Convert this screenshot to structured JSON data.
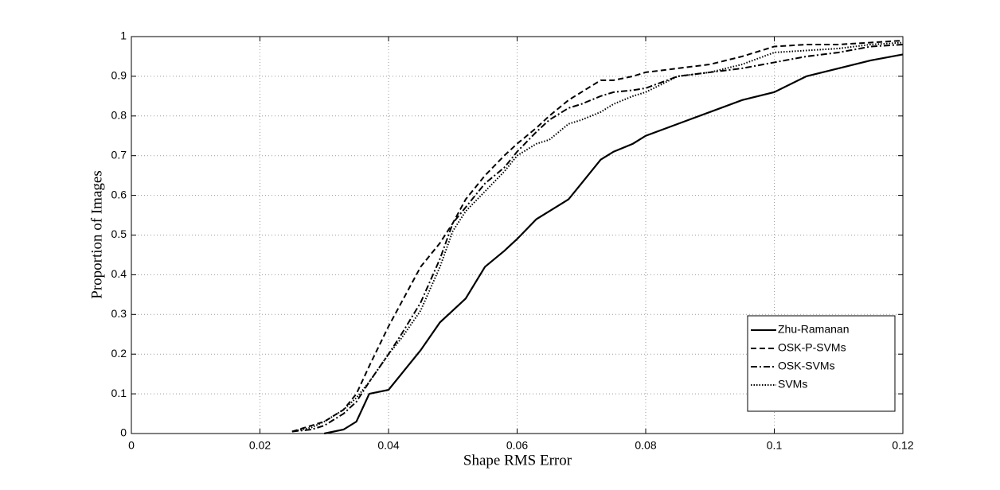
{
  "chart_data": {
    "type": "line",
    "xlabel": "Shape RMS Error",
    "ylabel": "Proportion of Images",
    "x": [
      0.025,
      0.028,
      0.03,
      0.033,
      0.035,
      0.037,
      0.04,
      0.042,
      0.045,
      0.048,
      0.05,
      0.052,
      0.055,
      0.058,
      0.06,
      0.063,
      0.065,
      0.068,
      0.07,
      0.073,
      0.075,
      0.078,
      0.08,
      0.085,
      0.09,
      0.095,
      0.1,
      0.105,
      0.11,
      0.115,
      0.12
    ],
    "series": [
      {
        "name": "Zhu-Ramanan",
        "color": "#000000",
        "style": "solid",
        "values": [
          null,
          null,
          0,
          0.01,
          0.03,
          0.1,
          0.11,
          0.15,
          0.21,
          0.28,
          0.31,
          0.34,
          0.42,
          0.46,
          0.49,
          0.54,
          0.56,
          0.59,
          0.63,
          0.69,
          0.71,
          0.73,
          0.75,
          0.78,
          0.81,
          0.84,
          0.86,
          0.9,
          0.92,
          0.94,
          0.955
        ]
      },
      {
        "name": "OSK-P-SVMs",
        "color": "#000000",
        "style": "dashed",
        "values": [
          0.005,
          0.02,
          0.03,
          0.06,
          0.1,
          0.17,
          0.27,
          0.33,
          0.42,
          0.48,
          0.53,
          0.59,
          0.65,
          0.7,
          0.73,
          0.77,
          0.8,
          0.84,
          0.86,
          0.89,
          0.89,
          0.9,
          0.91,
          0.92,
          0.93,
          0.95,
          0.975,
          0.98,
          0.98,
          0.985,
          0.99
        ]
      },
      {
        "name": "OSK-SVMs",
        "color": "#000000",
        "style": "dashdot",
        "values": [
          0.005,
          0.01,
          0.02,
          0.05,
          0.08,
          0.13,
          0.2,
          0.25,
          0.33,
          0.44,
          0.53,
          0.57,
          0.63,
          0.67,
          0.71,
          0.76,
          0.79,
          0.82,
          0.83,
          0.85,
          0.86,
          0.865,
          0.87,
          0.9,
          0.91,
          0.92,
          0.935,
          0.95,
          0.96,
          0.975,
          0.98
        ]
      },
      {
        "name": "SVMs",
        "color": "#000000",
        "style": "dotted",
        "values": [
          0.005,
          0.015,
          0.03,
          0.06,
          0.09,
          0.13,
          0.2,
          0.24,
          0.31,
          0.42,
          0.51,
          0.56,
          0.61,
          0.66,
          0.7,
          0.73,
          0.74,
          0.78,
          0.79,
          0.81,
          0.83,
          0.85,
          0.86,
          0.9,
          0.91,
          0.93,
          0.96,
          0.965,
          0.97,
          0.98,
          0.985
        ]
      }
    ],
    "xlim": [
      0,
      0.12
    ],
    "xticks": [
      0,
      0.02,
      0.04,
      0.06,
      0.08,
      0.1,
      0.12
    ],
    "ylim": [
      0,
      1
    ],
    "yticks": [
      0,
      0.1,
      0.2,
      0.3,
      0.4,
      0.5,
      0.6,
      0.7,
      0.8,
      0.9,
      1
    ],
    "grid": true,
    "legend": "lower right"
  }
}
